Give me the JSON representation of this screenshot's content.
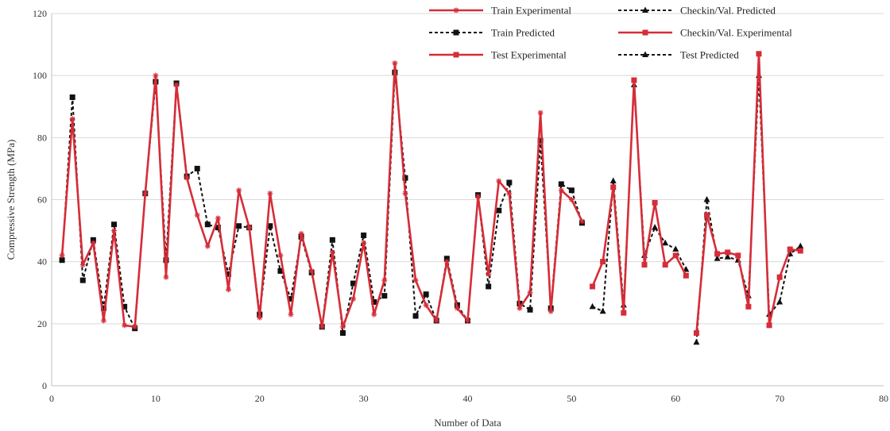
{
  "chart_data": {
    "type": "line",
    "title": "",
    "xlabel": "Number of Data",
    "ylabel": "Compressive Strength (MPa)",
    "xlim": [
      0,
      80
    ],
    "ylim": [
      0,
      120
    ],
    "xticks": [
      0,
      10,
      20,
      30,
      40,
      50,
      60,
      70,
      80
    ],
    "yticks": [
      0,
      20,
      40,
      60,
      80,
      100,
      120
    ],
    "grid": "horizontal",
    "legend_position": "top-right",
    "series": [
      {
        "name": "Train Experimental",
        "color": "#d62d38",
        "dash": "solid",
        "marker": "star",
        "points": [
          [
            1,
            42
          ],
          [
            2,
            86
          ],
          [
            3,
            39
          ],
          [
            4,
            46
          ],
          [
            5,
            21
          ],
          [
            6,
            50
          ],
          [
            7,
            19.5
          ],
          [
            8,
            19
          ],
          [
            9,
            62
          ],
          [
            10,
            100
          ],
          [
            11,
            35
          ],
          [
            12,
            97
          ],
          [
            13,
            67
          ],
          [
            14,
            55
          ],
          [
            15,
            45
          ],
          [
            16,
            54
          ],
          [
            17,
            31
          ],
          [
            18,
            63
          ],
          [
            19,
            51
          ],
          [
            20,
            22
          ],
          [
            21,
            62
          ],
          [
            22,
            42
          ],
          [
            23,
            23
          ],
          [
            24,
            49
          ],
          [
            25,
            37
          ],
          [
            26,
            19
          ],
          [
            27,
            43
          ],
          [
            28,
            19
          ],
          [
            29,
            28
          ],
          [
            30,
            46
          ],
          [
            31,
            23
          ],
          [
            32,
            34
          ],
          [
            33,
            104
          ],
          [
            34,
            62
          ],
          [
            35,
            34
          ],
          [
            36,
            26
          ],
          [
            37,
            21
          ],
          [
            38,
            40
          ],
          [
            39,
            25
          ],
          [
            40,
            21
          ],
          [
            41,
            61
          ],
          [
            42,
            36
          ],
          [
            43,
            66
          ],
          [
            44,
            62
          ],
          [
            45,
            25
          ],
          [
            46,
            30
          ],
          [
            47,
            88
          ],
          [
            48,
            24
          ],
          [
            49,
            63
          ],
          [
            50,
            60
          ],
          [
            51,
            53
          ]
        ]
      },
      {
        "name": "Train Predicted",
        "color": "#111111",
        "dash": "dashed",
        "marker": "square",
        "points": [
          [
            1,
            40.5
          ],
          [
            2,
            93
          ],
          [
            3,
            34
          ],
          [
            4,
            47
          ],
          [
            5,
            25
          ],
          [
            6,
            52
          ],
          [
            7,
            25.5
          ],
          [
            8,
            18.5
          ],
          [
            9,
            62
          ],
          [
            10,
            98
          ],
          [
            11,
            40.5
          ],
          [
            12,
            97.5
          ],
          [
            13,
            67.5
          ],
          [
            14,
            70
          ],
          [
            15,
            52
          ],
          [
            16,
            51
          ],
          [
            17,
            36
          ],
          [
            18,
            51.5
          ],
          [
            19,
            51
          ],
          [
            20,
            23
          ],
          [
            21,
            51.5
          ],
          [
            22,
            37
          ],
          [
            23,
            28
          ],
          [
            24,
            48
          ],
          [
            25,
            36.5
          ],
          [
            26,
            19
          ],
          [
            27,
            47
          ],
          [
            28,
            17
          ],
          [
            29,
            33
          ],
          [
            30,
            48.5
          ],
          [
            31,
            27
          ],
          [
            32,
            29
          ],
          [
            33,
            101
          ],
          [
            34,
            67
          ],
          [
            35,
            22.5
          ],
          [
            36,
            29.5
          ],
          [
            37,
            21
          ],
          [
            38,
            41
          ],
          [
            39,
            26
          ],
          [
            40,
            21
          ],
          [
            41,
            61.5
          ],
          [
            42,
            32
          ],
          [
            43,
            56.5
          ],
          [
            44,
            65.5
          ],
          [
            45,
            26.5
          ],
          [
            46,
            24.5
          ],
          [
            47,
            79
          ],
          [
            48,
            25
          ],
          [
            49,
            65
          ],
          [
            50,
            63
          ],
          [
            51,
            52.5
          ]
        ]
      },
      {
        "name": "Test Experimental",
        "color": "#d62d38",
        "dash": "solid",
        "marker": "square",
        "points": [
          [
            52,
            32
          ],
          [
            53,
            40
          ],
          [
            54,
            64
          ],
          [
            55,
            23.5
          ],
          [
            56,
            98.5
          ],
          [
            57,
            39
          ],
          [
            58,
            59
          ],
          [
            59,
            39
          ],
          [
            60,
            42
          ],
          [
            61,
            35.5
          ]
        ]
      },
      {
        "name": "Checkin/Val. Predicted",
        "color": "#111111",
        "dash": "dashed",
        "marker": "triangle",
        "points": [
          [
            52,
            25.5
          ],
          [
            53,
            24
          ],
          [
            54,
            66
          ],
          [
            55,
            26
          ],
          [
            56,
            97
          ],
          [
            57,
            42
          ],
          [
            58,
            51
          ],
          [
            59,
            46
          ],
          [
            60,
            44
          ],
          [
            61,
            37.5
          ]
        ]
      },
      {
        "name": "Checkin/Val. Experimental",
        "color": "#d62d38",
        "dash": "solid",
        "marker": "square",
        "points": [
          [
            62,
            17
          ],
          [
            63,
            55
          ],
          [
            64,
            42.5
          ],
          [
            65,
            43
          ],
          [
            66,
            42
          ],
          [
            67,
            25.5
          ],
          [
            68,
            107
          ],
          [
            69,
            19.5
          ],
          [
            70,
            35
          ],
          [
            71,
            44
          ],
          [
            72,
            43.5
          ]
        ]
      },
      {
        "name": "Test Predicted",
        "color": "#111111",
        "dash": "dashed",
        "marker": "triangle",
        "points": [
          [
            62,
            14
          ],
          [
            63,
            60
          ],
          [
            64,
            41
          ],
          [
            65,
            41.5
          ],
          [
            66,
            40.5
          ],
          [
            67,
            29
          ],
          [
            68,
            100
          ],
          [
            69,
            23
          ],
          [
            70,
            27
          ],
          [
            71,
            42.5
          ],
          [
            72,
            45
          ]
        ]
      }
    ],
    "legend": [
      {
        "label": "Train Experimental",
        "series": 0,
        "col": 0,
        "row": 0
      },
      {
        "label": "Checkin/Val. Predicted",
        "series": 3,
        "col": 1,
        "row": 0
      },
      {
        "label": "Train Predicted",
        "series": 1,
        "col": 0,
        "row": 1
      },
      {
        "label": "Checkin/Val. Experimental",
        "series": 4,
        "col": 1,
        "row": 1
      },
      {
        "label": "Test Experimental",
        "series": 2,
        "col": 0,
        "row": 2
      },
      {
        "label": "Test Predicted",
        "series": 5,
        "col": 1,
        "row": 2
      }
    ]
  }
}
